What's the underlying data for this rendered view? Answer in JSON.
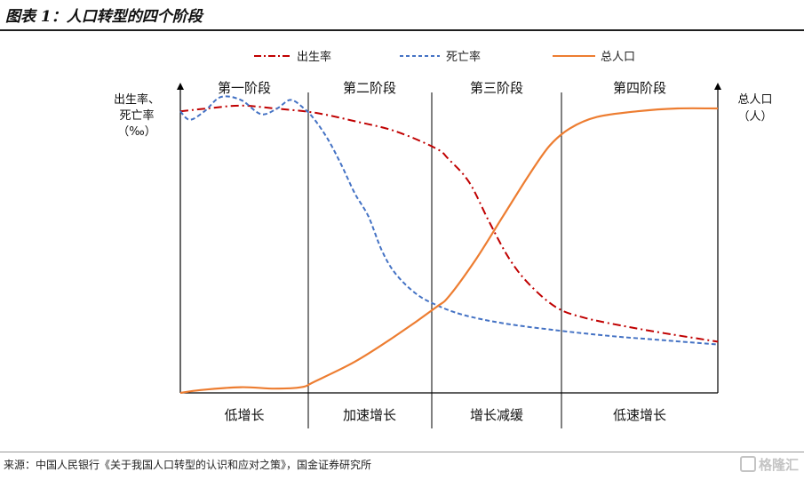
{
  "header": {
    "title": "图表 1：人口转型的四个阶段"
  },
  "footer": {
    "source": "来源：中国人民银行《关于我国人口转型的认识和应对之策》，国金证券研究所",
    "watermark": "格隆汇"
  },
  "chart_data": {
    "type": "line",
    "title": "图表 1：人口转型的四个阶段",
    "legend_position": "top",
    "grid": false,
    "ylabel_left": [
      "出生率、",
      "死亡率",
      "（‰）"
    ],
    "ylabel_right": [
      "总人口",
      "（人）"
    ],
    "phases": [
      {
        "name": "第一阶段",
        "growth": "低增长"
      },
      {
        "name": "第二阶段",
        "growth": "加速增长"
      },
      {
        "name": "第三阶段",
        "growth": "增长减缓"
      },
      {
        "name": "第四阶段",
        "growth": "低速增长"
      }
    ],
    "xlim": [
      0,
      4
    ],
    "ylim": [
      0,
      1
    ],
    "series": [
      {
        "name": "出生率",
        "color": "#c00000",
        "style": "dash-dot",
        "points": [
          [
            0,
            0.99
          ],
          [
            0.2,
            1.0
          ],
          [
            0.45,
            1.01
          ],
          [
            0.7,
            1.0
          ],
          [
            1.0,
            0.985
          ],
          [
            1.3,
            0.955
          ],
          [
            1.6,
            0.92
          ],
          [
            1.9,
            0.86
          ],
          [
            2.0,
            0.82
          ],
          [
            2.15,
            0.74
          ],
          [
            2.3,
            0.6
          ],
          [
            2.45,
            0.47
          ],
          [
            2.6,
            0.38
          ],
          [
            2.8,
            0.3
          ],
          [
            3.0,
            0.265
          ],
          [
            3.3,
            0.235
          ],
          [
            3.6,
            0.21
          ],
          [
            4.0,
            0.18
          ]
        ]
      },
      {
        "name": "死亡率",
        "color": "#4472c4",
        "style": "dash",
        "points": [
          [
            0,
            0.99
          ],
          [
            0.07,
            0.96
          ],
          [
            0.18,
            0.99
          ],
          [
            0.3,
            1.04
          ],
          [
            0.45,
            1.03
          ],
          [
            0.6,
            0.98
          ],
          [
            0.72,
            1.0
          ],
          [
            0.82,
            1.03
          ],
          [
            0.92,
            1.0
          ],
          [
            1.0,
            0.96
          ],
          [
            1.1,
            0.89
          ],
          [
            1.2,
            0.8
          ],
          [
            1.3,
            0.7
          ],
          [
            1.4,
            0.62
          ],
          [
            1.5,
            0.5
          ],
          [
            1.6,
            0.42
          ],
          [
            1.75,
            0.35
          ],
          [
            1.9,
            0.31
          ],
          [
            2.1,
            0.275
          ],
          [
            2.4,
            0.245
          ],
          [
            2.8,
            0.22
          ],
          [
            3.2,
            0.2
          ],
          [
            3.6,
            0.185
          ],
          [
            4.0,
            0.17
          ]
        ]
      },
      {
        "name": "总人口",
        "color": "#ed7d31",
        "style": "solid",
        "points": [
          [
            0,
            0.0
          ],
          [
            0.15,
            0.01
          ],
          [
            0.45,
            0.02
          ],
          [
            0.7,
            0.015
          ],
          [
            0.9,
            0.02
          ],
          [
            1.0,
            0.04
          ],
          [
            1.3,
            0.11
          ],
          [
            1.6,
            0.2
          ],
          [
            1.9,
            0.3
          ],
          [
            2.0,
            0.34
          ],
          [
            2.2,
            0.47
          ],
          [
            2.4,
            0.62
          ],
          [
            2.6,
            0.77
          ],
          [
            2.75,
            0.87
          ],
          [
            2.9,
            0.93
          ],
          [
            3.1,
            0.97
          ],
          [
            3.4,
            0.99
          ],
          [
            3.7,
            1.0
          ],
          [
            4.0,
            1.0
          ]
        ]
      }
    ]
  }
}
